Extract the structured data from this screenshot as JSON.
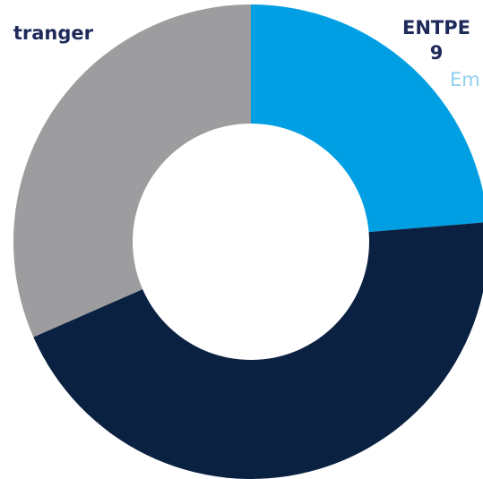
{
  "chart_data": {
    "type": "donut",
    "categories": [
      "ENTPE",
      null,
      "tranger"
    ],
    "values": [
      9,
      17,
      12
    ],
    "colors": [
      "#009fe3",
      "#0b2142",
      "#9d9d9f"
    ],
    "annotations": [
      "Em"
    ]
  }
}
